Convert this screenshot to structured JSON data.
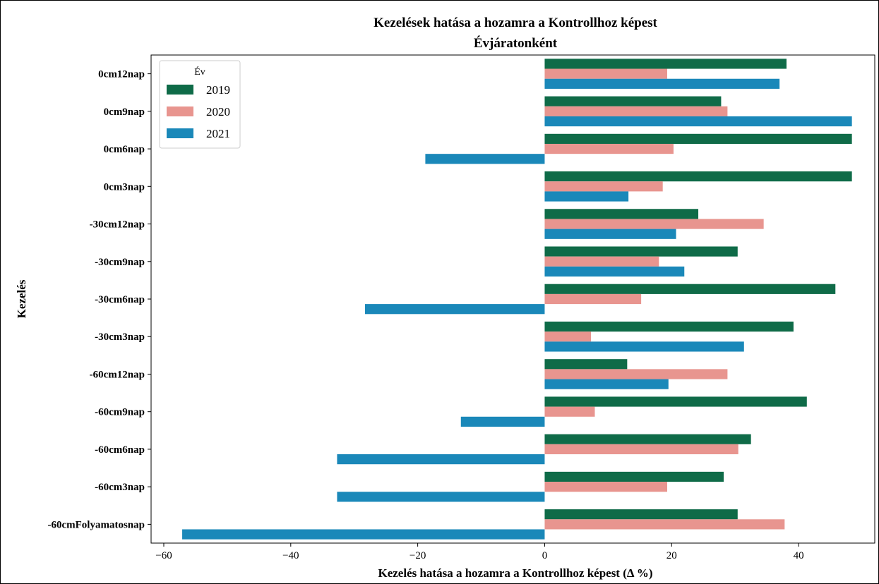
{
  "chart_data": {
    "type": "bar",
    "orientation": "horizontal",
    "title": [
      "Kezelések hatása a hozamra a Kontrollhoz képest",
      "Évjáratonként"
    ],
    "xlabel": "Kezelés hatása a hozamra a Kontrollhoz képest (Δ %)",
    "ylabel": "Kezelés",
    "xlim": [
      -62,
      52
    ],
    "xticks": [
      -60,
      -40,
      -20,
      0,
      20,
      40
    ],
    "xtick_labels": [
      "−60",
      "−40",
      "−20",
      "0",
      "20",
      "40"
    ],
    "grid": false,
    "legend": {
      "title": "Év",
      "position": "top-left"
    },
    "categories": [
      "0cm12nap",
      "0cm9nap",
      "0cm6nap",
      "0cm3nap",
      "-30cm12nap",
      "-30cm9nap",
      "-30cm6nap",
      "-30cm3nap",
      "-60cm12nap",
      "-60cm9nap",
      "-60cm6nap",
      "-60cm3nap",
      "-60cmFolyamatosnap"
    ],
    "series": [
      {
        "name": "2019",
        "color": "#0f6b48",
        "values": [
          38.1,
          27.8,
          48.4,
          48.4,
          24.2,
          30.4,
          45.8,
          39.2,
          13.0,
          41.3,
          32.5,
          28.2,
          30.4
        ]
      },
      {
        "name": "2020",
        "color": "#e8958f",
        "values": [
          19.3,
          28.8,
          20.3,
          18.6,
          34.5,
          18.0,
          15.2,
          7.3,
          28.8,
          7.9,
          30.5,
          19.3,
          37.8
        ]
      },
      {
        "name": "2021",
        "color": "#1a88b9",
        "values": [
          37.0,
          48.4,
          -18.8,
          13.2,
          20.7,
          22.0,
          -28.3,
          31.4,
          19.5,
          -13.2,
          -32.7,
          -32.7,
          -57.1
        ]
      }
    ]
  }
}
